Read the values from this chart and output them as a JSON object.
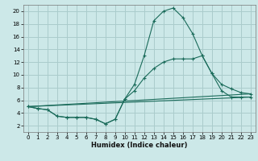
{
  "xlabel": "Humidex (Indice chaleur)",
  "bg_color": "#cce8e8",
  "grid_color": "#aacccc",
  "line_color": "#1a6b5a",
  "xlim": [
    -0.5,
    23.5
  ],
  "ylim": [
    1,
    21
  ],
  "yticks": [
    2,
    4,
    6,
    8,
    10,
    12,
    14,
    16,
    18,
    20
  ],
  "xticks": [
    0,
    1,
    2,
    3,
    4,
    5,
    6,
    7,
    8,
    9,
    10,
    11,
    12,
    13,
    14,
    15,
    16,
    17,
    18,
    19,
    20,
    21,
    22,
    23
  ],
  "line1_x": [
    0,
    1,
    2,
    3,
    4,
    5,
    6,
    7,
    8,
    9,
    10,
    11,
    12,
    13,
    14,
    15,
    16,
    17,
    18,
    19,
    20,
    21,
    22,
    23
  ],
  "line1_y": [
    5.0,
    4.7,
    4.5,
    3.5,
    3.3,
    3.3,
    3.3,
    3.0,
    2.3,
    3.0,
    6.2,
    8.5,
    13.0,
    18.5,
    20.0,
    20.5,
    19.0,
    16.5,
    13.0,
    10.2,
    8.5,
    7.8,
    7.2,
    7.0
  ],
  "line2_x": [
    0,
    1,
    2,
    3,
    4,
    5,
    6,
    7,
    8,
    9,
    10,
    11,
    12,
    13,
    14,
    15,
    16,
    17,
    18,
    19,
    20,
    21,
    22,
    23
  ],
  "line2_y": [
    5.0,
    4.7,
    4.5,
    3.5,
    3.3,
    3.3,
    3.3,
    3.0,
    2.3,
    3.0,
    6.2,
    7.5,
    9.5,
    11.0,
    12.0,
    12.5,
    12.5,
    12.5,
    13.0,
    10.2,
    7.5,
    6.5,
    6.5,
    6.5
  ],
  "line3_x": [
    0,
    23
  ],
  "line3_y": [
    5.0,
    7.0
  ],
  "line4_x": [
    0,
    23
  ],
  "line4_y": [
    5.0,
    6.5
  ]
}
